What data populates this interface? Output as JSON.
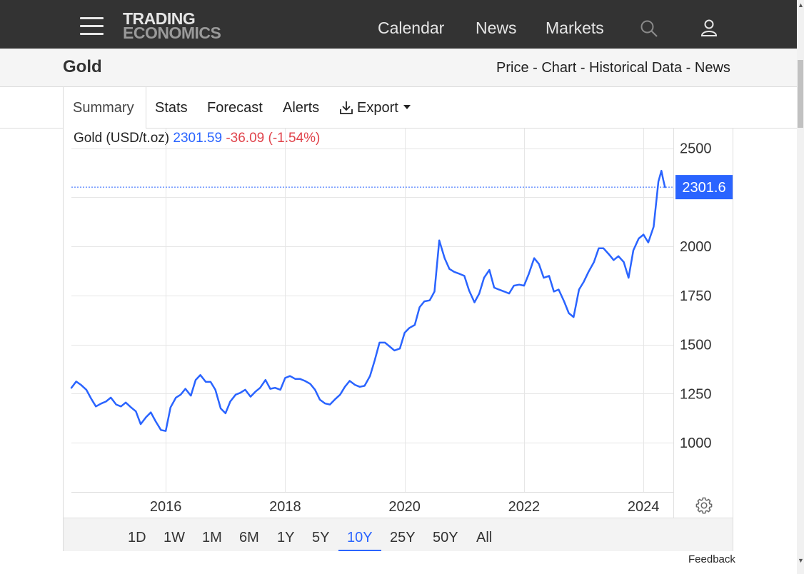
{
  "header": {
    "logo_line1": "TRADING",
    "logo_line2": "ECONOMICS",
    "nav": [
      "Calendar",
      "News",
      "Markets"
    ],
    "icons": [
      "menu-icon",
      "search-icon",
      "user-icon"
    ]
  },
  "page": {
    "title": "Gold",
    "breadcrumb": [
      "Price",
      "Chart",
      "Historical Data",
      "News"
    ],
    "breadcrumb_sep": " - "
  },
  "tabs": [
    "Summary",
    "Stats",
    "Forecast",
    "Alerts",
    "Export"
  ],
  "legend": {
    "name": "Gold (USD/t.oz)",
    "price": "2301.59",
    "change": "-36.09 (-1.54%)"
  },
  "colors": {
    "line": "#2a64ff",
    "negative": "#e0434b",
    "topbar": "#333333"
  },
  "ranges": [
    "1D",
    "1W",
    "1M",
    "6M",
    "1Y",
    "5Y",
    "10Y",
    "25Y",
    "50Y",
    "All"
  ],
  "active_range": "10Y",
  "feedback": "Feedback",
  "chart_data": {
    "type": "line",
    "ylim": [
      750,
      2600
    ],
    "xlim": [
      2014.42,
      2024.5
    ],
    "yticks": [
      1000,
      1250,
      1500,
      1750,
      2000,
      2500
    ],
    "xticks": [
      2016,
      2018,
      2020,
      2022,
      2024
    ],
    "last_value_label": "2301.6",
    "last_value": 2301.6,
    "series": [
      {
        "values": [
          [
            2014.42,
            1280
          ],
          [
            2014.5,
            1312
          ],
          [
            2014.58,
            1295
          ],
          [
            2014.67,
            1270
          ],
          [
            2014.75,
            1225
          ],
          [
            2014.83,
            1185
          ],
          [
            2014.92,
            1200
          ],
          [
            2015.0,
            1210
          ],
          [
            2015.08,
            1230
          ],
          [
            2015.17,
            1195
          ],
          [
            2015.25,
            1185
          ],
          [
            2015.33,
            1205
          ],
          [
            2015.42,
            1180
          ],
          [
            2015.5,
            1160
          ],
          [
            2015.58,
            1095
          ],
          [
            2015.67,
            1130
          ],
          [
            2015.75,
            1155
          ],
          [
            2015.83,
            1110
          ],
          [
            2015.92,
            1065
          ],
          [
            2016.0,
            1060
          ],
          [
            2016.08,
            1180
          ],
          [
            2016.17,
            1230
          ],
          [
            2016.25,
            1245
          ],
          [
            2016.33,
            1275
          ],
          [
            2016.42,
            1240
          ],
          [
            2016.5,
            1320
          ],
          [
            2016.58,
            1345
          ],
          [
            2016.67,
            1310
          ],
          [
            2016.75,
            1310
          ],
          [
            2016.83,
            1270
          ],
          [
            2016.92,
            1175
          ],
          [
            2017.0,
            1150
          ],
          [
            2017.08,
            1210
          ],
          [
            2017.17,
            1245
          ],
          [
            2017.25,
            1255
          ],
          [
            2017.33,
            1270
          ],
          [
            2017.42,
            1235
          ],
          [
            2017.5,
            1260
          ],
          [
            2017.58,
            1280
          ],
          [
            2017.67,
            1320
          ],
          [
            2017.75,
            1275
          ],
          [
            2017.83,
            1280
          ],
          [
            2017.92,
            1270
          ],
          [
            2018.0,
            1330
          ],
          [
            2018.08,
            1340
          ],
          [
            2018.17,
            1325
          ],
          [
            2018.25,
            1325
          ],
          [
            2018.33,
            1315
          ],
          [
            2018.42,
            1300
          ],
          [
            2018.5,
            1270
          ],
          [
            2018.58,
            1220
          ],
          [
            2018.67,
            1200
          ],
          [
            2018.75,
            1195
          ],
          [
            2018.83,
            1220
          ],
          [
            2018.92,
            1245
          ],
          [
            2019.0,
            1285
          ],
          [
            2019.08,
            1315
          ],
          [
            2019.17,
            1295
          ],
          [
            2019.25,
            1285
          ],
          [
            2019.33,
            1290
          ],
          [
            2019.42,
            1340
          ],
          [
            2019.5,
            1420
          ],
          [
            2019.58,
            1510
          ],
          [
            2019.67,
            1510
          ],
          [
            2019.75,
            1490
          ],
          [
            2019.83,
            1470
          ],
          [
            2019.92,
            1480
          ],
          [
            2020.0,
            1560
          ],
          [
            2020.08,
            1585
          ],
          [
            2020.17,
            1600
          ],
          [
            2020.25,
            1690
          ],
          [
            2020.33,
            1720
          ],
          [
            2020.42,
            1725
          ],
          [
            2020.5,
            1770
          ],
          [
            2020.58,
            2030
          ],
          [
            2020.67,
            1940
          ],
          [
            2020.75,
            1885
          ],
          [
            2020.83,
            1870
          ],
          [
            2020.92,
            1860
          ],
          [
            2021.0,
            1850
          ],
          [
            2021.08,
            1775
          ],
          [
            2021.17,
            1715
          ],
          [
            2021.25,
            1760
          ],
          [
            2021.33,
            1840
          ],
          [
            2021.42,
            1880
          ],
          [
            2021.5,
            1790
          ],
          [
            2021.58,
            1780
          ],
          [
            2021.67,
            1770
          ],
          [
            2021.75,
            1760
          ],
          [
            2021.83,
            1800
          ],
          [
            2021.92,
            1805
          ],
          [
            2022.0,
            1800
          ],
          [
            2022.08,
            1860
          ],
          [
            2022.17,
            1940
          ],
          [
            2022.25,
            1910
          ],
          [
            2022.33,
            1840
          ],
          [
            2022.42,
            1850
          ],
          [
            2022.5,
            1770
          ],
          [
            2022.58,
            1780
          ],
          [
            2022.67,
            1720
          ],
          [
            2022.75,
            1660
          ],
          [
            2022.83,
            1640
          ],
          [
            2022.92,
            1780
          ],
          [
            2023.0,
            1820
          ],
          [
            2023.08,
            1870
          ],
          [
            2023.17,
            1920
          ],
          [
            2023.25,
            1990
          ],
          [
            2023.33,
            1990
          ],
          [
            2023.42,
            1960
          ],
          [
            2023.5,
            1930
          ],
          [
            2023.58,
            1950
          ],
          [
            2023.67,
            1920
          ],
          [
            2023.75,
            1840
          ],
          [
            2023.83,
            1980
          ],
          [
            2023.92,
            2040
          ],
          [
            2024.0,
            2060
          ],
          [
            2024.08,
            2020
          ],
          [
            2024.17,
            2100
          ],
          [
            2024.25,
            2330
          ],
          [
            2024.3,
            2385
          ],
          [
            2024.33,
            2340
          ],
          [
            2024.36,
            2301.6
          ]
        ]
      }
    ]
  }
}
